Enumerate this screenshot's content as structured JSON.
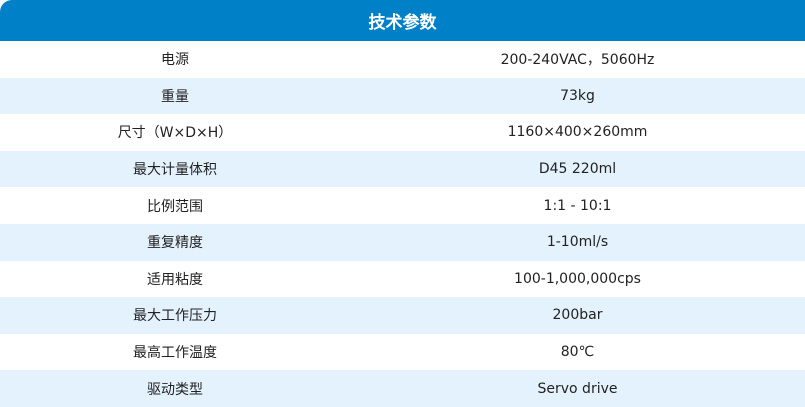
{
  "title": "技术参数",
  "colors": {
    "header": "#0080c6",
    "stripe": "#e4f2fd"
  },
  "rows": [
    {
      "label": "电源",
      "value": "200-240VAC，5060Hz"
    },
    {
      "label": "重量",
      "value": "73kg"
    },
    {
      "label": "尺寸（W×D×H）",
      "value": "1160×400×260mm"
    },
    {
      "label": "最大计量体积",
      "value": "D45 220ml"
    },
    {
      "label": "比例范围",
      "value": "1:1 - 10:1"
    },
    {
      "label": "重复精度",
      "value": "1-10ml/s"
    },
    {
      "label": "适用粘度",
      "value": "100-1,000,000cps"
    },
    {
      "label": "最大工作压力",
      "value": "200bar"
    },
    {
      "label": "最高工作温度",
      "value": "80℃"
    },
    {
      "label": "驱动类型",
      "value": "Servo drive"
    }
  ]
}
